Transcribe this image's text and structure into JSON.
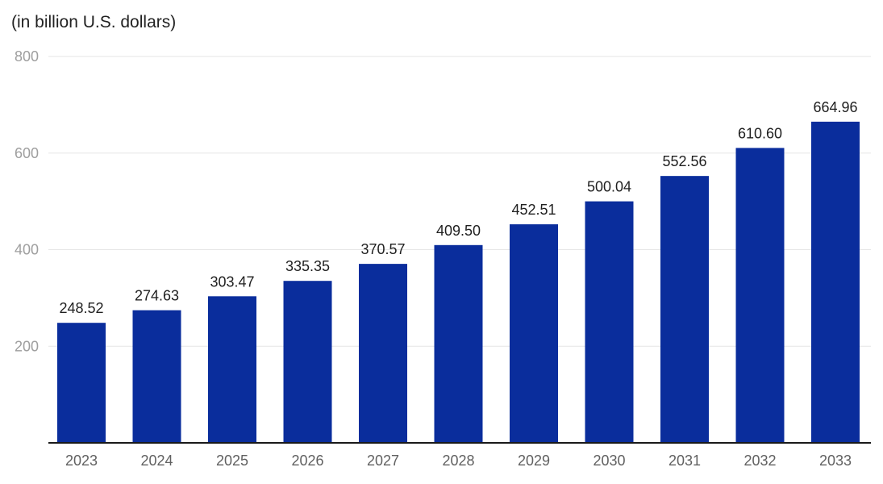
{
  "chart_data": {
    "type": "bar",
    "title": "",
    "unit_label": "(in billion U.S. dollars)",
    "xlabel": "",
    "ylabel": "",
    "categories": [
      "2023",
      "2024",
      "2025",
      "2026",
      "2027",
      "2028",
      "2029",
      "2030",
      "2031",
      "2032",
      "2033"
    ],
    "values": [
      248.52,
      274.63,
      303.47,
      335.35,
      370.57,
      409.5,
      452.51,
      500.04,
      552.56,
      610.6,
      664.96
    ],
    "value_labels": [
      "248.52",
      "274.63",
      "303.47",
      "335.35",
      "370.57",
      "409.50",
      "452.51",
      "500.04",
      "552.56",
      "610.60",
      "664.96"
    ],
    "ylim": [
      0,
      800
    ],
    "yticks": [
      200,
      400,
      600,
      800
    ],
    "ytick_labels": [
      "200",
      "400",
      "600",
      "800"
    ],
    "grid": true,
    "legend": "none",
    "bar_color": "#0a2d9c",
    "grid_color": "#e6e6e6",
    "axis_color": "#1a1a1a"
  }
}
